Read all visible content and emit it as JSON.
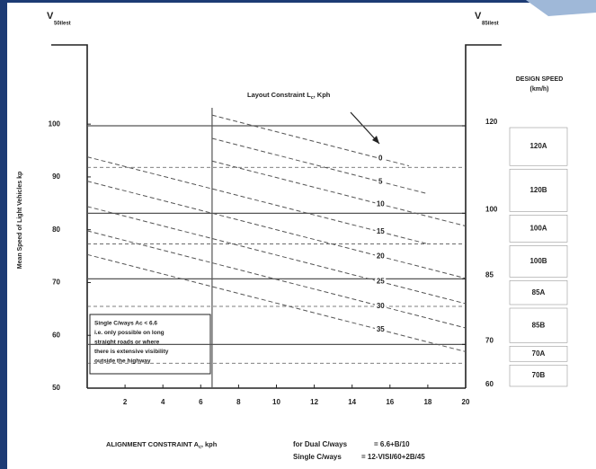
{
  "chart_data": {
    "type": "line",
    "y_axis_title": "Mean Speed of Light Vehicles kp",
    "y_symbol": "V",
    "y_symbol_sub": "50ilest",
    "y2_symbol": "V",
    "y2_symbol_sub": "85ilest",
    "x_label": "ALIGNMENT CONSTRAINT A",
    "x_label_sub": "c",
    "x_label_suffix": ", kph",
    "annotation": "Layout Constraint L",
    "annotation_sub": "c",
    "annotation_suffix": ", Kph",
    "band_title": [
      "DESIGN SPEED",
      "(km/h)"
    ],
    "xlim": [
      0,
      20
    ],
    "xticks": [
      2,
      4,
      6,
      8,
      10,
      12,
      14,
      16,
      18,
      20
    ],
    "ylim": [
      50,
      115
    ],
    "yticks": [
      50,
      60,
      70,
      80,
      90,
      100
    ],
    "y2lim": [
      60,
      138.5
    ],
    "y2ticks": [
      60,
      70,
      85,
      100,
      120
    ],
    "vertical_line": 6.6,
    "line_style": "dashed",
    "series": [
      {
        "name": "0",
        "color": "#555555",
        "x": [
          6.6,
          17
        ],
        "values": [
          101.7,
          92.1
        ]
      },
      {
        "name": "5",
        "color": "#555555",
        "x": [
          6.6,
          18
        ],
        "values": [
          97.3,
          86.8
        ]
      },
      {
        "name": "10",
        "color": "#555555",
        "x": [
          6.6,
          20
        ],
        "values": [
          93.0,
          80.7
        ]
      },
      {
        "name": "15",
        "color": "#555555",
        "x": [
          0,
          18
        ],
        "values": [
          93.8,
          77.3
        ]
      },
      {
        "name": "20",
        "color": "#555555",
        "x": [
          0,
          20
        ],
        "values": [
          89.2,
          70.8
        ]
      },
      {
        "name": "25",
        "color": "#555555",
        "x": [
          0,
          20
        ],
        "values": [
          84.4,
          66.0
        ]
      },
      {
        "name": "30",
        "color": "#555555",
        "x": [
          0,
          20
        ],
        "values": [
          79.8,
          61.4
        ]
      },
      {
        "name": "35",
        "color": "#555555",
        "x": [
          0,
          20
        ],
        "values": [
          75.3,
          56.9
        ]
      }
    ],
    "bands": [
      {
        "label": "120A",
        "from": 110.5,
        "to": 120,
        "boundary_style": "solid"
      },
      {
        "label": "120B",
        "from": 100,
        "to": 110.5,
        "boundary_style": "dashed"
      },
      {
        "label": "100A",
        "from": 93,
        "to": 100,
        "boundary_style": "solid"
      },
      {
        "label": "100B",
        "from": 85,
        "to": 93,
        "boundary_style": "dashed"
      },
      {
        "label": "85A",
        "from": 78.7,
        "to": 85,
        "boundary_style": "solid"
      },
      {
        "label": "85B",
        "from": 70,
        "to": 78.7,
        "boundary_style": "dashed"
      },
      {
        "label": "70A",
        "from": 65.7,
        "to": 70,
        "boundary_style": "solid"
      },
      {
        "label": "70B",
        "from": 60,
        "to": 65.7,
        "boundary_style": "dashed"
      }
    ],
    "note": [
      "Single C/ways Ac < 6.6",
      "i.e. only possible on long",
      "straight roads or where",
      "there is extensive visibility",
      "outside the highway"
    ],
    "formulas": [
      {
        "label": "for Dual C/ways",
        "expression": "=  6.6+B/10"
      },
      {
        "label": "Single C/ways",
        "expression": "=  12-VISI/60+2B/45"
      }
    ]
  }
}
